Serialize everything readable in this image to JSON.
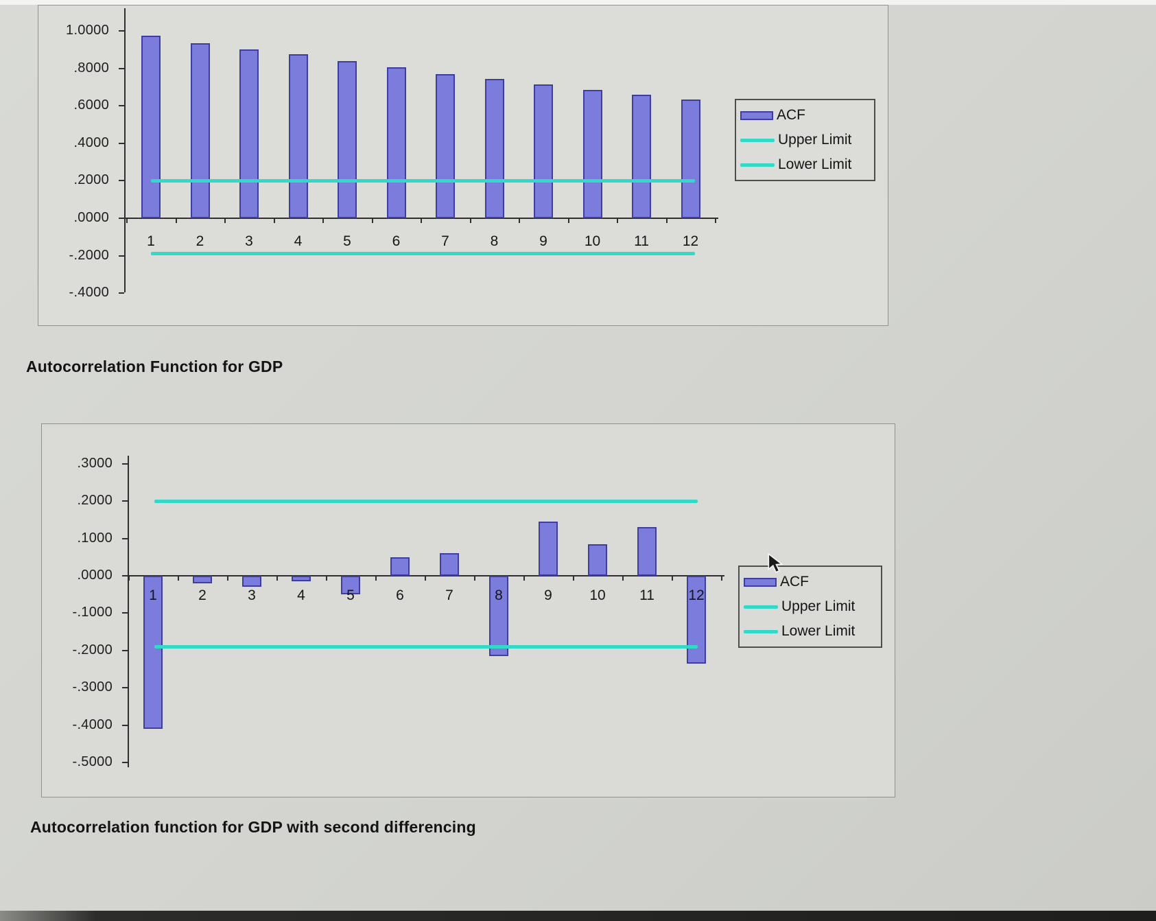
{
  "page": {
    "top_strip_color": "#f3f3f1",
    "bottom_bar_color": "#2c2c2a",
    "background_color": "#d3d4d0"
  },
  "chart_data": [
    {
      "type": "bar",
      "title": "Autocorrelation Function for GDP",
      "categories": [
        "1",
        "2",
        "3",
        "4",
        "5",
        "6",
        "7",
        "8",
        "9",
        "10",
        "11",
        "12"
      ],
      "series": [
        {
          "name": "ACF",
          "values": [
            0.975,
            0.935,
            0.9,
            0.875,
            0.84,
            0.805,
            0.77,
            0.745,
            0.715,
            0.685,
            0.66,
            0.635
          ]
        }
      ],
      "upper_limit": {
        "label": "Upper Limit",
        "value": 0.2
      },
      "lower_limit": {
        "label": "Lower Limit",
        "value": -0.19
      },
      "ylim": [
        -0.4,
        1.0
      ],
      "y_ticks": [
        {
          "label": "1.0000",
          "value": 1.0
        },
        {
          "label": ".8000",
          "value": 0.8
        },
        {
          "label": ".6000",
          "value": 0.6
        },
        {
          "label": ".4000",
          "value": 0.4
        },
        {
          "label": ".2000",
          "value": 0.2
        },
        {
          "label": ".0000",
          "value": 0.0
        },
        {
          "label": "-.2000",
          "value": -0.2
        },
        {
          "label": "-.4000",
          "value": -0.4
        }
      ],
      "legend_position": "right",
      "grid": false,
      "legend": [
        {
          "label": "ACF",
          "swatch": "bar"
        },
        {
          "label": "Upper Limit",
          "swatch": "line"
        },
        {
          "label": "Lower Limit",
          "swatch": "line"
        }
      ],
      "colors": {
        "bar_fill": "#7b7cdb",
        "bar_border": "#3c3f9f",
        "limit_line": "#32d9c9"
      }
    },
    {
      "type": "bar",
      "title": "Autocorrelation function for GDP with second differencing",
      "categories": [
        "1",
        "2",
        "3",
        "4",
        "5",
        "6",
        "7",
        "8",
        "9",
        "10",
        "11",
        "12"
      ],
      "series": [
        {
          "name": "ACF",
          "values": [
            -0.41,
            -0.02,
            -0.03,
            -0.015,
            -0.05,
            0.05,
            0.06,
            -0.215,
            0.145,
            0.085,
            0.13,
            -0.235
          ]
        }
      ],
      "upper_limit": {
        "label": "Upper Limit",
        "value": 0.2
      },
      "lower_limit": {
        "label": "Lower Limit",
        "value": -0.19
      },
      "ylim": [
        -0.5,
        0.3
      ],
      "y_ticks": [
        {
          "label": ".3000",
          "value": 0.3
        },
        {
          "label": ".2000",
          "value": 0.2
        },
        {
          "label": ".1000",
          "value": 0.1
        },
        {
          "label": ".0000",
          "value": 0.0
        },
        {
          "label": "-.1000",
          "value": -0.1
        },
        {
          "label": "-.2000",
          "value": -0.2
        },
        {
          "label": "-.3000",
          "value": -0.3
        },
        {
          "label": "-.4000",
          "value": -0.4
        },
        {
          "label": "-.5000",
          "value": -0.5
        }
      ],
      "legend_position": "right",
      "grid": false,
      "legend": [
        {
          "label": "ACF",
          "swatch": "bar"
        },
        {
          "label": "Upper Limit",
          "swatch": "line"
        },
        {
          "label": "Lower Limit",
          "swatch": "line"
        }
      ],
      "colors": {
        "bar_fill": "#7b7cdb",
        "bar_border": "#3c3f9f",
        "limit_line": "#32d9c9"
      }
    }
  ]
}
